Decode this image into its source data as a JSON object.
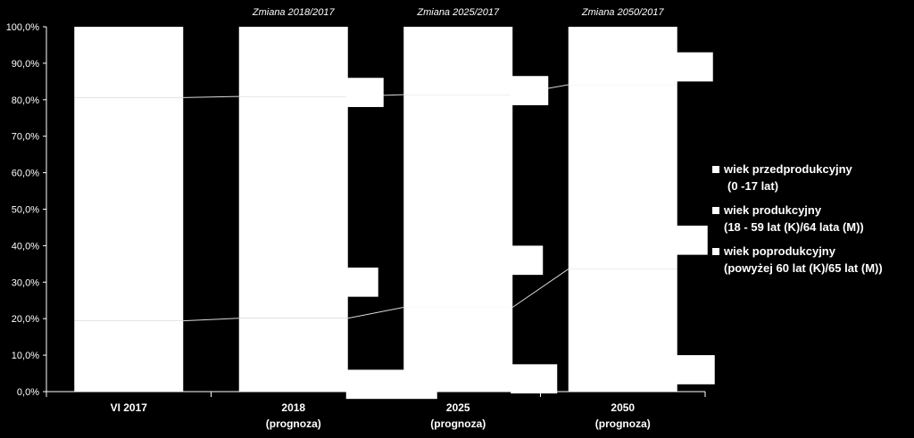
{
  "chart_data": {
    "type": "bar",
    "stacked": true,
    "normalized": true,
    "ylim": [
      0,
      100
    ],
    "y_ticks": [
      "0,0%",
      "10,0%",
      "20,0%",
      "30,0%",
      "40,0%",
      "50,0%",
      "60,0%",
      "70,0%",
      "80,0%",
      "90,0%",
      "100,0%"
    ],
    "categories": [
      {
        "line1": "VI 2017",
        "line2": ""
      },
      {
        "line1": "2018",
        "line2": "(prognoza)"
      },
      {
        "line1": "2025",
        "line2": "(prognoza)"
      },
      {
        "line1": "2050",
        "line2": "(prognoza)"
      }
    ],
    "series": [
      {
        "line1": "wiek przedprodukcyjny",
        "line2": "(0 -17 lat)",
        "values": [
          19.4,
          20.1,
          23.1,
          33.6
        ]
      },
      {
        "line1": "wiek produkcyjny",
        "line2": "(18 - 59 lat (K)/64 lata (M))",
        "values": [
          61.2,
          60.8,
          58.3,
          50.5
        ]
      },
      {
        "line1": "wiek poprodukcyjny",
        "line2": "(powyżej 60 lat (K)/65 lat (M))",
        "values": [
          19.4,
          19.1,
          18.6,
          15.9
        ]
      }
    ],
    "change_labels": [
      "Zmiana 2018/2017",
      "Zmiana 2025/2017",
      "Zmiana 2050/2017"
    ],
    "change_boxes": [
      {
        "after": 1,
        "lower": -2.0,
        "upper": 6.0,
        "middle": [
          26.0,
          34.0
        ],
        "top": [
          78.0,
          86.0
        ]
      },
      {
        "after": 2,
        "lower": -0.5,
        "upper": 7.5,
        "middle": [
          32.0,
          40.0
        ],
        "top": [
          78.5,
          86.5
        ]
      },
      {
        "after": 3,
        "lower": 2.0,
        "upper": 10.0,
        "middle": [
          37.5,
          45.5
        ],
        "top": [
          85.0,
          93.0
        ]
      }
    ],
    "colors": {
      "background": "#000000",
      "bars": "#ffffff",
      "connectors": "#d9d9d9"
    },
    "legend_position": "right"
  }
}
